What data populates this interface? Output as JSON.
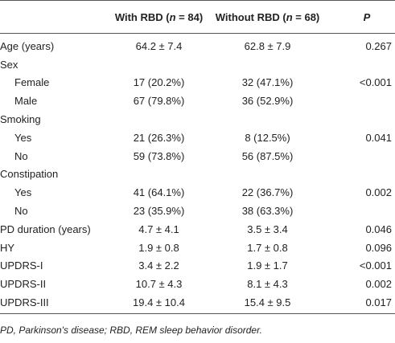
{
  "table": {
    "header": [
      [
        "With RBD (",
        "n",
        " = 84)"
      ],
      [
        "Without RBD (",
        "n",
        " = 68)"
      ],
      [
        "P"
      ]
    ],
    "rows": [
      {
        "label": "Age (years)",
        "values": [
          "64.2 ± 7.4",
          "62.8 ± 7.9",
          "0.267"
        ]
      },
      {
        "label": "Sex",
        "subrows": [
          {
            "label": "Female",
            "values": [
              "17 (20.2%)",
              "32 (47.1%)",
              "<0.001"
            ]
          },
          {
            "label": "Male",
            "values": [
              "67 (79.8%)",
              "36 (52.9%)",
              ""
            ]
          }
        ]
      },
      {
        "label": "Smoking",
        "subrows": [
          {
            "label": "Yes",
            "values": [
              "21 (26.3%)",
              "8 (12.5%)",
              "0.041"
            ]
          },
          {
            "label": "No",
            "values": [
              "59 (73.8%)",
              "56 (87.5%)",
              ""
            ]
          }
        ]
      },
      {
        "label": "Constipation",
        "subrows": [
          {
            "label": "Yes",
            "values": [
              "41 (64.1%)",
              "22 (36.7%)",
              "0.002"
            ]
          },
          {
            "label": "No",
            "values": [
              "23 (35.9%)",
              "38 (63.3%)",
              ""
            ]
          }
        ]
      },
      {
        "label": "PD duration (years)",
        "values": [
          "4.7 ± 4.1",
          "3.5 ± 3.4",
          "0.046"
        ]
      },
      {
        "label": "HY",
        "values": [
          "1.9 ± 0.8",
          "1.7 ± 0.8",
          "0.096"
        ]
      },
      {
        "label": "UPDRS-I",
        "values": [
          "3.4 ± 2.2",
          "1.9 ± 1.7",
          "<0.001"
        ]
      },
      {
        "label": "UPDRS-II",
        "values": [
          "10.7 ± 4.3",
          "8.1 ± 4.3",
          "0.002"
        ]
      },
      {
        "label": "UPDRS-III",
        "values": [
          "19.4 ± 10.4",
          "15.4 ± 9.5",
          "0.017"
        ]
      }
    ],
    "footnote": "PD, Parkinson's disease; RBD, REM sleep behavior disorder."
  }
}
